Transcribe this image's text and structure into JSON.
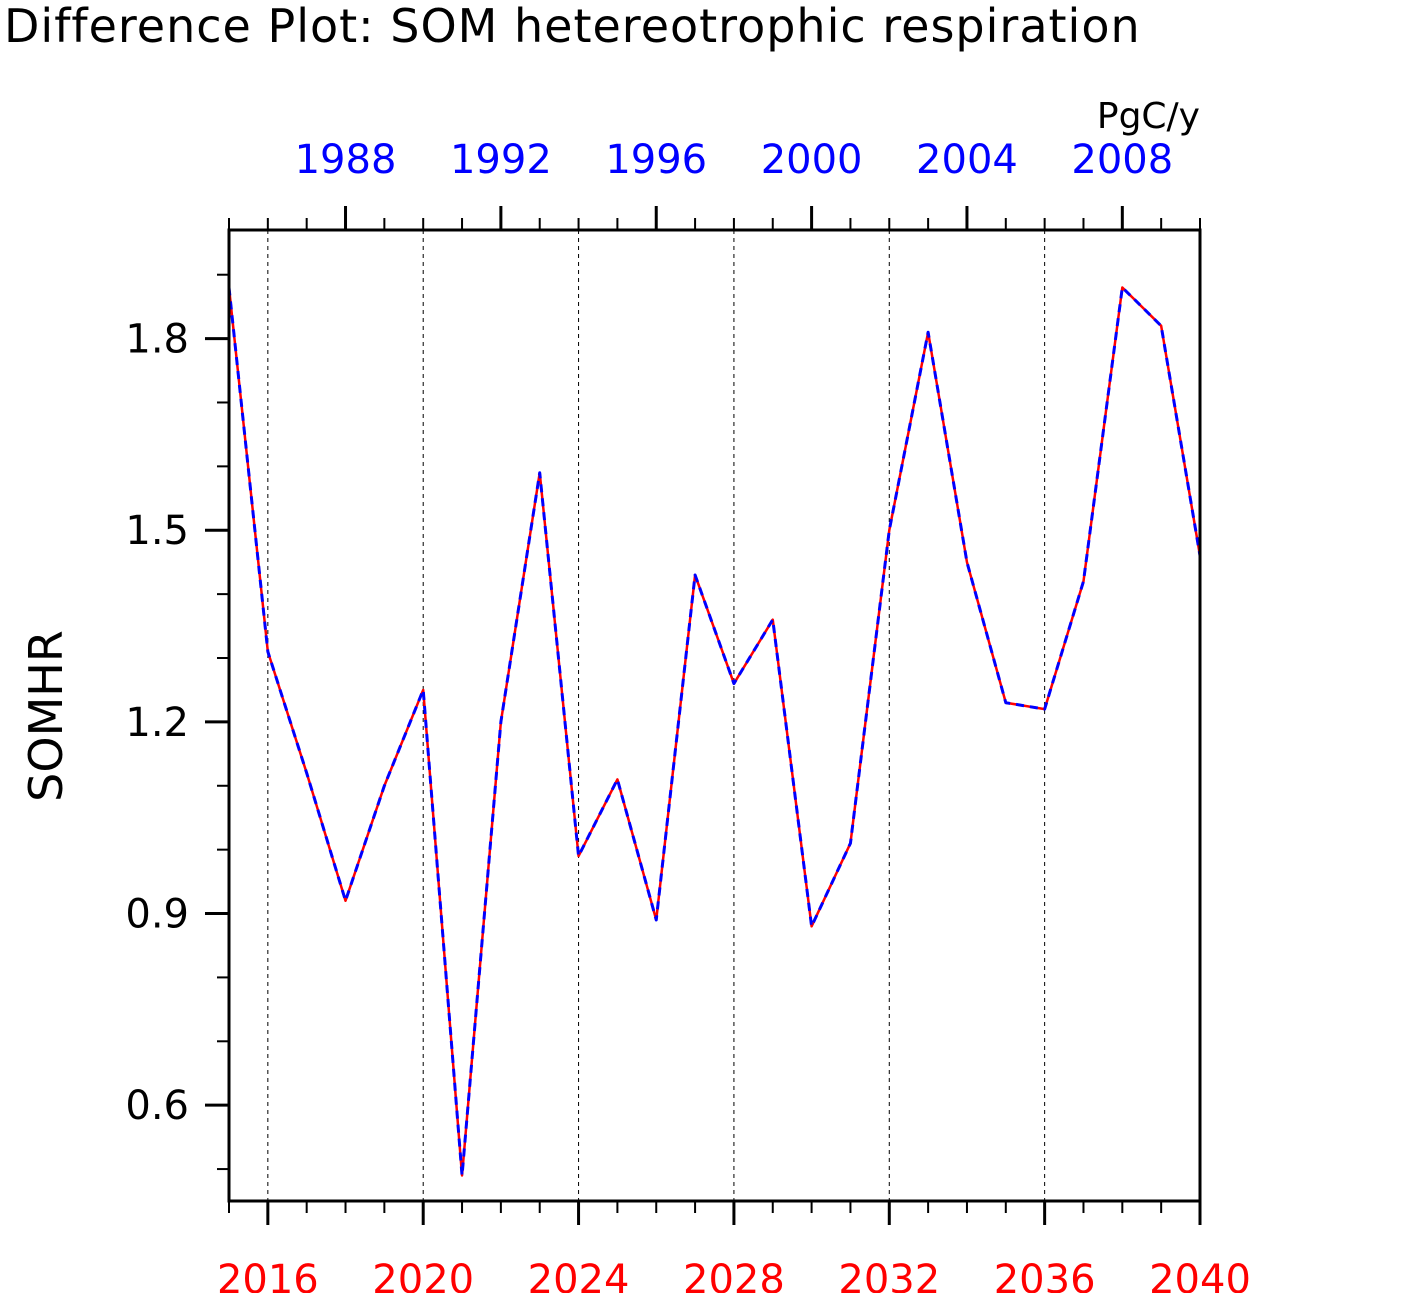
{
  "chart_data": {
    "type": "line",
    "title": "Difference Plot: SOM hetereotrophic respiration",
    "ylabel": "SOMHR",
    "units": "PgC/y",
    "ylim": [
      0.45,
      1.97
    ],
    "yticks": [
      0.6,
      0.9,
      1.2,
      1.5,
      1.8
    ],
    "x_bottom": {
      "range": [
        2015,
        2040
      ],
      "ticks": [
        2016,
        2020,
        2024,
        2028,
        2032,
        2036,
        2040
      ],
      "color": "#ff0000"
    },
    "x_top": {
      "range": [
        1985,
        2010
      ],
      "ticks": [
        1988,
        1992,
        1996,
        2000,
        2004,
        2008
      ],
      "color": "#0000ff"
    },
    "grid": "vertical dashed at major bottom ticks",
    "x": [
      2015,
      2016,
      2017,
      2018,
      2019,
      2020,
      2021,
      2022,
      2023,
      2024,
      2025,
      2026,
      2027,
      2028,
      2029,
      2030,
      2031,
      2032,
      2033,
      2034,
      2035,
      2036,
      2037,
      2038,
      2039,
      2040
    ],
    "series": [
      {
        "color": "#ff0000",
        "style": "solid",
        "values": [
          1.88,
          1.31,
          1.12,
          0.92,
          1.1,
          1.25,
          0.49,
          1.2,
          1.59,
          0.99,
          1.11,
          0.89,
          1.43,
          1.26,
          1.36,
          0.88,
          1.01,
          1.5,
          1.81,
          1.45,
          1.23,
          1.22,
          1.42,
          1.88,
          1.82,
          1.46
        ]
      },
      {
        "color": "#0000ff",
        "style": "dashed",
        "values": [
          1.88,
          1.31,
          1.12,
          0.92,
          1.1,
          1.25,
          0.49,
          1.2,
          1.59,
          0.99,
          1.11,
          0.89,
          1.43,
          1.26,
          1.36,
          0.88,
          1.01,
          1.5,
          1.81,
          1.45,
          1.23,
          1.22,
          1.42,
          1.88,
          1.82,
          1.46
        ]
      }
    ]
  }
}
